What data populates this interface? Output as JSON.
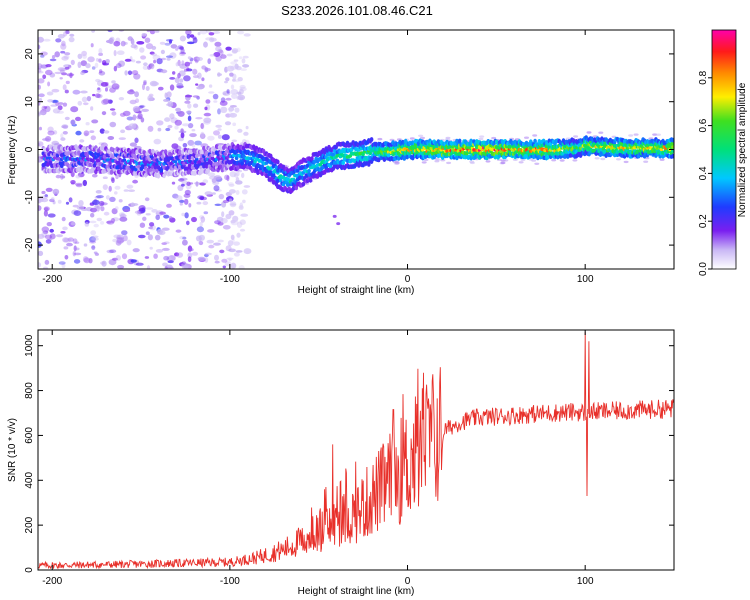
{
  "title": "S233.2026.101.08.46.C21",
  "chart_data": [
    {
      "type": "heatmap",
      "name": "spectrogram",
      "xlabel": "Height of straight line (km)",
      "ylabel": "Frequency (Hz)",
      "xlim": [
        -208,
        150
      ],
      "ylim": [
        -25,
        25
      ],
      "xticks": [
        -200,
        -100,
        0,
        100
      ],
      "xtick_labels": [
        "-200",
        "-100",
        "0",
        "100"
      ],
      "yticks": [
        -20,
        -10,
        0,
        10,
        20
      ],
      "ytick_labels": [
        "-20",
        "-10",
        "0",
        "10",
        "20"
      ],
      "colorbar": {
        "label": "Normalized spectral amplitude",
        "range": [
          0,
          1
        ],
        "ticks": [
          0.0,
          0.2,
          0.4,
          0.6,
          0.8
        ],
        "tick_labels": [
          "0.0",
          "0.2",
          "0.4",
          "0.6",
          "0.8"
        ]
      },
      "ridge_x": [
        -200,
        -180,
        -160,
        -140,
        -120,
        -100,
        -90,
        -80,
        -72,
        -66,
        -60,
        -50,
        -40,
        -30,
        -20,
        -10,
        0,
        20,
        40,
        60,
        80,
        95,
        100,
        120,
        150
      ],
      "ridge_freq": [
        -2,
        -2,
        -2.5,
        -3,
        -2.5,
        -1.5,
        -1.5,
        -3,
        -5.5,
        -6.5,
        -5,
        -3,
        -1.5,
        -1,
        -0.5,
        -0.3,
        0,
        0,
        0,
        0,
        0,
        0.3,
        0.8,
        0.3,
        0.3
      ],
      "ridge_amplitude": [
        0.3,
        0.35,
        0.35,
        0.35,
        0.3,
        0.35,
        0.4,
        0.4,
        0.45,
        0.45,
        0.4,
        0.45,
        0.5,
        0.55,
        0.6,
        0.7,
        0.75,
        0.85,
        0.9,
        0.85,
        0.8,
        0.6,
        0.7,
        0.75,
        0.8
      ],
      "noise_region_x": [
        -208,
        -100
      ],
      "noise_freq_range": [
        -25,
        25
      ]
    },
    {
      "type": "line",
      "name": "snr",
      "xlabel": "Height of straight line (km)",
      "ylabel": "SNR (10 * v/v)",
      "xlim": [
        -208,
        150
      ],
      "ylim": [
        0,
        1070
      ],
      "xticks": [
        -200,
        -100,
        0,
        100
      ],
      "xtick_labels": [
        "-200",
        "-100",
        "0",
        "100"
      ],
      "yticks": [
        0,
        200,
        400,
        600,
        800,
        1000
      ],
      "ytick_labels": [
        "0",
        "200",
        "400",
        "600",
        "800",
        "1000"
      ],
      "color": "#e8302a",
      "trend_x": [
        -208,
        -160,
        -130,
        -100,
        -85,
        -70,
        -60,
        -50,
        -40,
        -30,
        -20,
        -10,
        0,
        10,
        20,
        30,
        40,
        60,
        80,
        95,
        100,
        105,
        120,
        150
      ],
      "trend_y": [
        20,
        25,
        30,
        35,
        55,
        90,
        130,
        170,
        210,
        250,
        320,
        400,
        470,
        560,
        620,
        660,
        680,
        690,
        700,
        705,
        700,
        705,
        710,
        720
      ],
      "spikes": [
        {
          "x": -42,
          "y": 560
        },
        {
          "x": -8,
          "y": 715
        },
        {
          "x": 100,
          "y": 1060
        },
        {
          "x": 101,
          "y": 330
        },
        {
          "x": 102,
          "y": 1020
        }
      ]
    }
  ]
}
